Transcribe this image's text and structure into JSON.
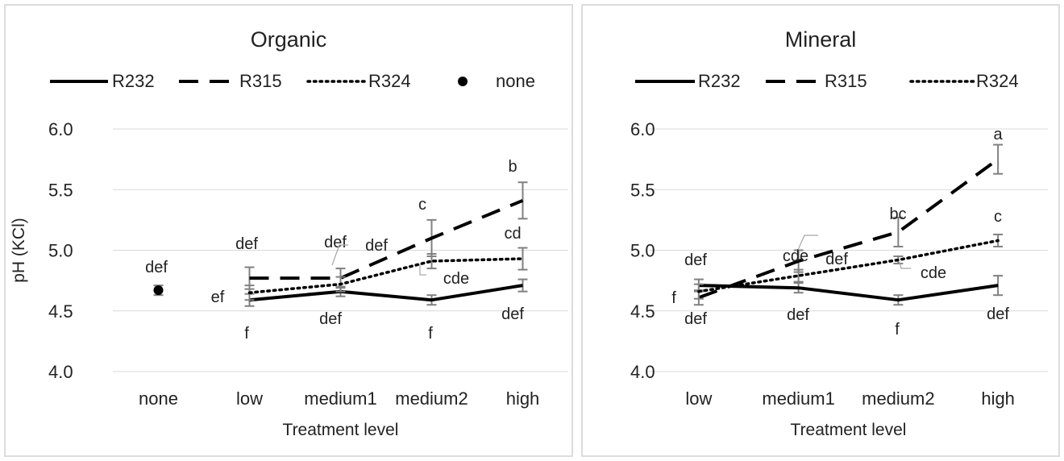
{
  "colors": {
    "series_line": "#000000",
    "grid": "#d9d9d9",
    "error_bar": "#808080",
    "leader_line": "#a6a6a6",
    "panel_border": "#d0d0d0",
    "text": "#222222"
  },
  "chart_data": [
    {
      "type": "line",
      "title": "Organic",
      "xlabel": "Treatment level",
      "ylabel": "pH (KCl)",
      "ylim": [
        4.0,
        6.0
      ],
      "yticks": [
        "4.0",
        "4.5",
        "5.0",
        "5.5",
        "6.0"
      ],
      "categories": [
        "none",
        "low",
        "medium1",
        "medium2",
        "high"
      ],
      "grid": true,
      "legend_position": "top",
      "legend": [
        {
          "name": "R232",
          "style": "solid"
        },
        {
          "name": "R315",
          "style": "dashed"
        },
        {
          "name": "R324",
          "style": "dotted"
        },
        {
          "name": "none",
          "style": "marker"
        }
      ],
      "series": [
        {
          "name": "R232",
          "style": "solid",
          "values": [
            null,
            4.59,
            4.66,
            4.59,
            4.71
          ],
          "errors": [
            null,
            0.05,
            0.04,
            0.04,
            0.05
          ],
          "letters": [
            null,
            "f",
            "def",
            "f",
            "def"
          ]
        },
        {
          "name": "R315",
          "style": "dashed",
          "values": [
            null,
            4.77,
            4.77,
            5.1,
            5.41
          ],
          "errors": [
            null,
            0.09,
            0.08,
            0.15,
            0.15
          ],
          "letters": [
            null,
            "def",
            "def",
            "c",
            "b"
          ]
        },
        {
          "name": "R324",
          "style": "dotted",
          "values": [
            null,
            4.65,
            4.72,
            4.91,
            4.93
          ],
          "errors": [
            null,
            0.06,
            0.06,
            0.06,
            0.09
          ],
          "letters": [
            null,
            "ef",
            "def",
            "cde",
            "cd"
          ]
        },
        {
          "name": "none",
          "style": "marker",
          "values": [
            4.67,
            null,
            null,
            null,
            null
          ],
          "errors": [
            0.04,
            null,
            null,
            null,
            null
          ],
          "letters": [
            "def",
            null,
            null,
            null,
            null
          ]
        }
      ]
    },
    {
      "type": "line",
      "title": "Mineral",
      "xlabel": "Treatment level",
      "ylabel": "",
      "ylim": [
        4.0,
        6.0
      ],
      "yticks": [
        "4.0",
        "4.5",
        "5.0",
        "5.5",
        "6.0"
      ],
      "categories": [
        "low",
        "medium1",
        "medium2",
        "high"
      ],
      "grid": true,
      "legend_position": "top",
      "legend": [
        {
          "name": "R232",
          "style": "solid"
        },
        {
          "name": "R315",
          "style": "dashed"
        },
        {
          "name": "R324",
          "style": "dotted"
        }
      ],
      "series": [
        {
          "name": "R232",
          "style": "solid",
          "values": [
            4.71,
            4.69,
            4.59,
            4.71
          ],
          "errors": [
            0.05,
            0.04,
            0.04,
            0.08
          ],
          "letters": [
            "def",
            "def",
            "f",
            "def"
          ]
        },
        {
          "name": "R315",
          "style": "dashed",
          "values": [
            4.61,
            4.91,
            5.15,
            5.75
          ],
          "errors": [
            0.06,
            0.09,
            0.12,
            0.12
          ],
          "letters": [
            "f",
            "cde",
            "bc",
            "a"
          ]
        },
        {
          "name": "R324",
          "style": "dotted",
          "values": [
            4.66,
            4.79,
            4.92,
            5.08
          ],
          "errors": [
            0.06,
            0.05,
            0.03,
            0.05
          ],
          "letters": [
            "def",
            "def",
            "cde",
            "c"
          ]
        }
      ]
    }
  ]
}
